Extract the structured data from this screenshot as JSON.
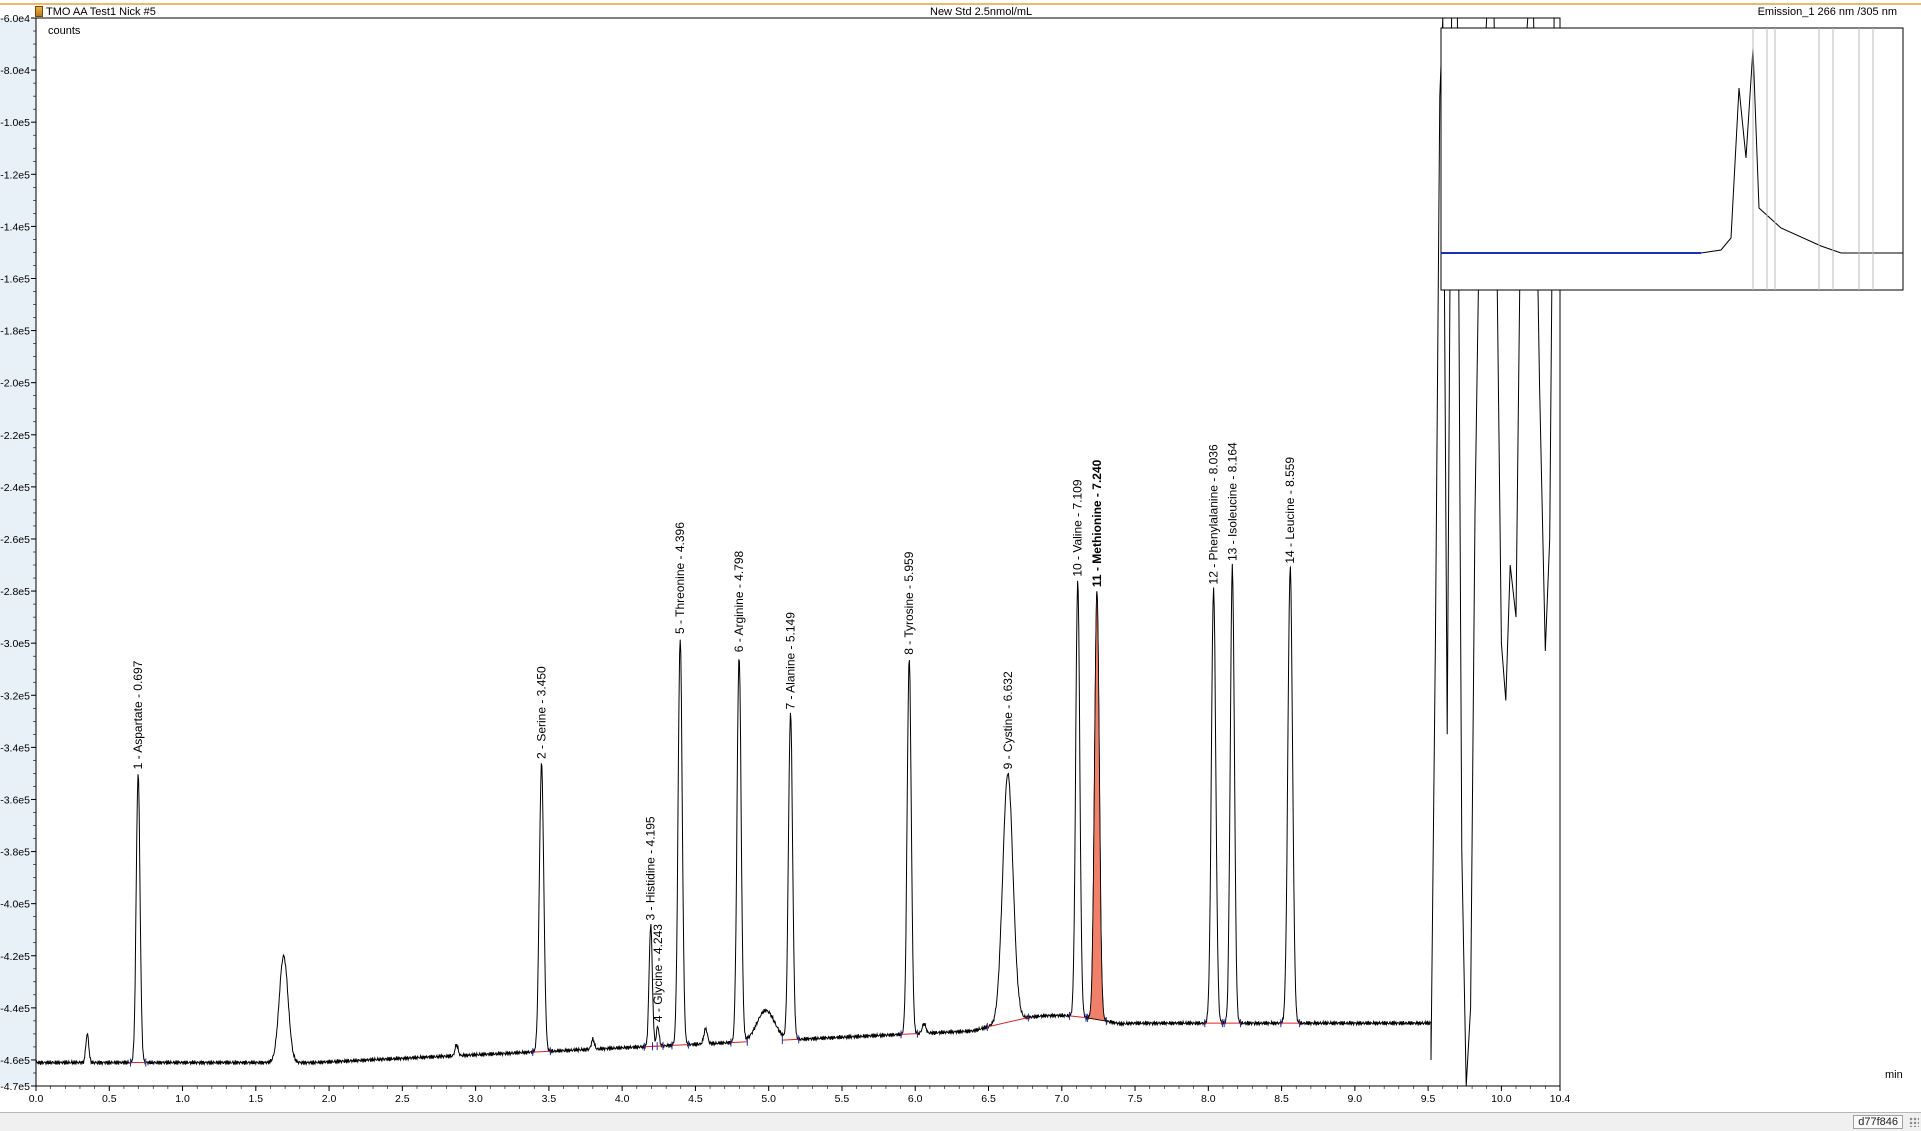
{
  "header": {
    "left_title": "TMO AA Test1 Nick #5",
    "center_title": "New Std 2.5nmol/mL",
    "right_title": "Emission_1 266 nm /305 nm"
  },
  "status_bar": {
    "code": "d77f846"
  },
  "colors": {
    "trace": "#000000",
    "baseline": "#e02020",
    "highlight_fill": "#f0806a",
    "highlight_label": "#e03a20",
    "axis_bg": "#e8f0f8",
    "inset_trace": "#1c2fb8"
  },
  "chart_data": {
    "type": "line",
    "xlabel": "min",
    "ylabel": "counts",
    "xlim": [
      0.0,
      10.4
    ],
    "ylim": [
      -470000,
      -60000
    ],
    "x_ticks": [
      "0.0",
      "0.5",
      "1.0",
      "1.5",
      "2.0",
      "2.5",
      "3.0",
      "3.5",
      "4.0",
      "4.5",
      "5.0",
      "5.5",
      "6.0",
      "6.5",
      "7.0",
      "7.5",
      "8.0",
      "8.5",
      "9.0",
      "9.5",
      "10.0",
      "10.4"
    ],
    "y_ticks": [
      "-6.0e4",
      "-8.0e4",
      "-1.0e5",
      "-1.2e5",
      "-1.4e5",
      "-1.6e5",
      "-1.8e5",
      "-2.0e5",
      "-2.2e5",
      "-2.4e5",
      "-2.6e5",
      "-2.8e5",
      "-3.0e5",
      "-3.2e5",
      "-3.4e5",
      "-3.6e5",
      "-3.8e5",
      "-4.0e5",
      "-4.2e5",
      "-4.4e5",
      "-4.6e5",
      "-4.7e5"
    ],
    "baseline_level": -461000,
    "peaks": [
      {
        "n": "1",
        "name": "Aspartate",
        "rt": 0.697,
        "label": "1 - Aspartate - 0.697",
        "apex": -350000,
        "width": 0.013
      },
      {
        "n": "2",
        "name": "Serine",
        "rt": 3.45,
        "label": "2 - Serine - 3.450",
        "apex": -346000,
        "width": 0.015
      },
      {
        "n": "3",
        "name": "Histidine",
        "rt": 4.195,
        "label": "3 - Histidine - 4.195",
        "apex": -408000,
        "width": 0.011
      },
      {
        "n": "4",
        "name": "Glycine",
        "rt": 4.243,
        "label": "4 - Glycine - 4.243",
        "apex": -447000,
        "width": 0.009
      },
      {
        "n": "5",
        "name": "Threonine",
        "rt": 4.396,
        "label": "5 - Threonine - 4.396",
        "apex": -298000,
        "width": 0.014
      },
      {
        "n": "6",
        "name": "Arginine",
        "rt": 4.798,
        "label": "6 - Arginine - 4.798",
        "apex": -305000,
        "width": 0.014
      },
      {
        "n": "7",
        "name": "Alanine",
        "rt": 5.149,
        "label": "7 - Alanine - 5.149",
        "apex": -327000,
        "width": 0.014
      },
      {
        "n": "8",
        "name": "Tyrosine",
        "rt": 5.959,
        "label": "8 - Tyrosine - 5.959",
        "apex": -306000,
        "width": 0.014
      },
      {
        "n": "9",
        "name": "Cystine",
        "rt": 6.632,
        "label": "9 - Cystine - 6.632",
        "apex": -350000,
        "width": 0.035
      },
      {
        "n": "10",
        "name": "Valine",
        "rt": 7.109,
        "label": "10 - Valine - 7.109",
        "apex": -276000,
        "width": 0.014
      },
      {
        "n": "11",
        "name": "Methionine",
        "rt": 7.24,
        "label": "11 - Methionine - 7.240",
        "apex": -280000,
        "width": 0.016,
        "highlight": true
      },
      {
        "n": "12",
        "name": "Phenylalanine",
        "rt": 8.036,
        "label": "12 - Phenylalanine - 8.036",
        "apex": -279000,
        "width": 0.015
      },
      {
        "n": "13",
        "name": "Isoleucine",
        "rt": 8.164,
        "label": "13 - Isoleucine - 8.164",
        "apex": -270000,
        "width": 0.014
      },
      {
        "n": "14",
        "name": "Leucine",
        "rt": 8.559,
        "label": "14 - Leucine - 8.559",
        "apex": -271000,
        "width": 0.016
      }
    ],
    "unlabeled_peaks": [
      {
        "rt": 0.35,
        "apex": -450000,
        "width": 0.01
      },
      {
        "rt": 1.69,
        "apex": -420000,
        "width": 0.03
      },
      {
        "rt": 2.87,
        "apex": -454000,
        "width": 0.01
      },
      {
        "rt": 3.8,
        "apex": -452000,
        "width": 0.01
      },
      {
        "rt": 4.57,
        "apex": -448000,
        "width": 0.012
      },
      {
        "rt": 4.98,
        "apex": -441000,
        "width": 0.06
      },
      {
        "rt": 6.06,
        "apex": -446000,
        "width": 0.012
      }
    ],
    "late_segment": {
      "x": [
        9.52,
        9.55,
        9.58,
        9.6,
        9.63,
        9.66,
        9.7,
        9.73,
        9.76,
        9.79,
        9.82,
        9.86,
        9.9,
        9.95,
        10.0,
        10.03,
        10.06,
        10.1,
        10.14,
        10.18,
        10.22,
        10.26,
        10.3,
        10.33,
        10.36,
        10.4
      ],
      "y": [
        -460000,
        -300000,
        -90000,
        -60000,
        -335000,
        -60000,
        -60000,
        -380000,
        -470000,
        -440000,
        -250000,
        -100000,
        -60000,
        -60000,
        -300000,
        -322000,
        -270000,
        -290000,
        -90000,
        -60000,
        -60000,
        -200000,
        -303000,
        -260000,
        -60000,
        -60000
      ]
    },
    "highlighted_peak": "11 - Methionine - 7.240"
  }
}
